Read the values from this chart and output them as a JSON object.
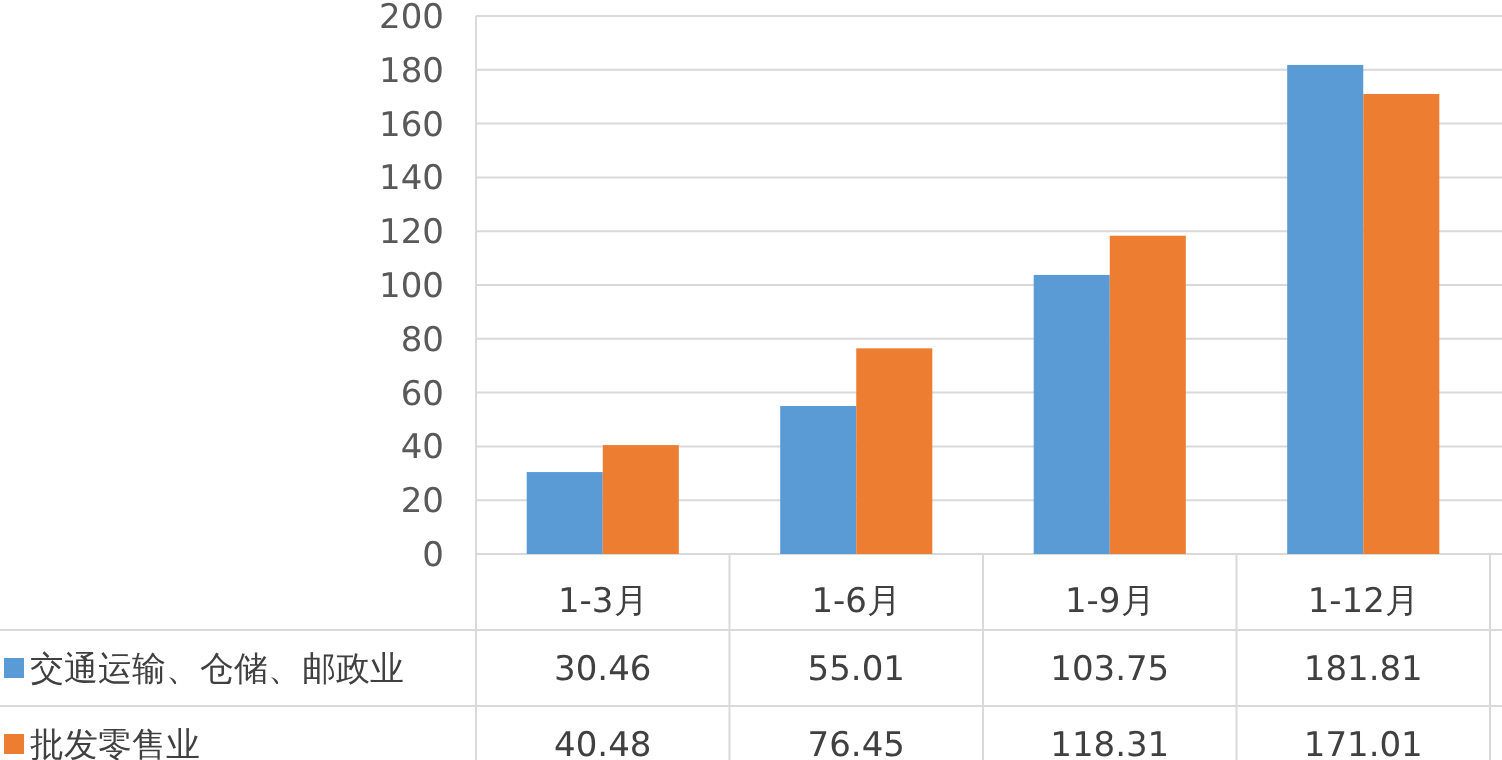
{
  "chart_data": {
    "type": "bar",
    "categories": [
      "1-3月",
      "1-6月",
      "1-9月",
      "1-12月"
    ],
    "series": [
      {
        "name": "交通运输、仓储、邮政业",
        "color": "#5b9bd5",
        "values": [
          30.46,
          55.01,
          103.75,
          181.81
        ]
      },
      {
        "name": "批发零售业",
        "color": "#ed7d31",
        "values": [
          40.48,
          76.45,
          118.31,
          171.01
        ]
      }
    ],
    "ylim": [
      0,
      200
    ],
    "yticks": [
      0,
      20,
      40,
      60,
      80,
      100,
      120,
      140,
      160,
      180,
      200
    ],
    "grid": "y",
    "legend": "bottom left",
    "data_labels": true
  }
}
